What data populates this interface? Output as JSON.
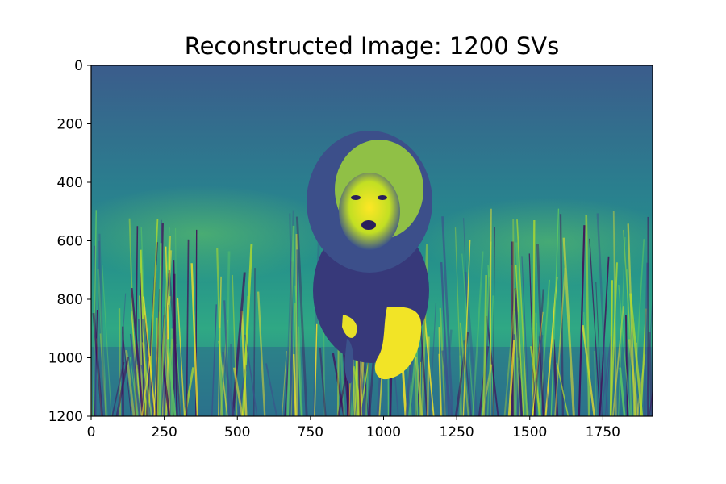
{
  "chart_data": {
    "type": "heatmap",
    "title": "Reconstructed Image: 1200 SVs",
    "content": "grayscale photo of a lion walking through tall grass, rendered with the viridis colormap",
    "colormap": "viridis",
    "xlabel": "",
    "ylabel": "",
    "xlim": [
      0,
      1920
    ],
    "ylim": [
      1200,
      0
    ],
    "x_ticks": [
      0,
      250,
      500,
      750,
      1000,
      1250,
      1500,
      1750
    ],
    "x_tick_labels": [
      "0",
      "250",
      "500",
      "750",
      "1000",
      "1250",
      "1500",
      "1750"
    ],
    "y_ticks": [
      0,
      200,
      400,
      600,
      800,
      1000,
      1200
    ],
    "y_tick_labels": [
      "0",
      "200",
      "400",
      "600",
      "800",
      "1000",
      "1200"
    ],
    "grid": false,
    "colors": {
      "viridis_dark": "#440154",
      "viridis_blue": "#3b528b",
      "viridis_teal": "#21918c",
      "viridis_green": "#5ec962",
      "viridis_yellow": "#fde725"
    }
  }
}
